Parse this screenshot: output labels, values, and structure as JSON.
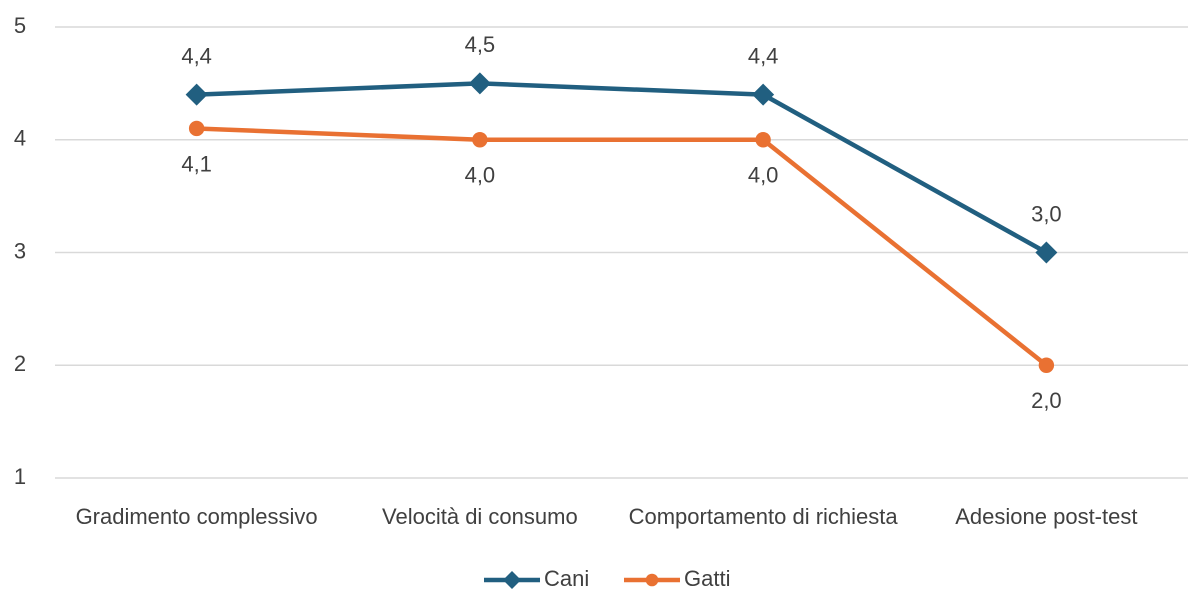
{
  "chart_data": {
    "type": "line",
    "categories": [
      "Gradimento complessivo",
      "Velocità di consumo",
      "Comportamento di richiesta",
      "Adesione post-test"
    ],
    "series": [
      {
        "name": "Cani",
        "color": "#215f80",
        "marker": "diamond",
        "values": [
          4.4,
          4.5,
          4.4,
          3.0
        ],
        "value_labels": [
          "4,4",
          "4,5",
          "4,4",
          "3,0"
        ]
      },
      {
        "name": "Gatti",
        "color": "#e97132",
        "marker": "circle",
        "values": [
          4.1,
          4.0,
          4.0,
          2.0
        ],
        "value_labels": [
          "4,1",
          "4,0",
          "4,0",
          "2,0"
        ]
      }
    ],
    "ylim": [
      1,
      5
    ],
    "yticks": [
      1,
      2,
      3,
      4,
      5
    ],
    "grid": true,
    "legend": "bottom"
  }
}
